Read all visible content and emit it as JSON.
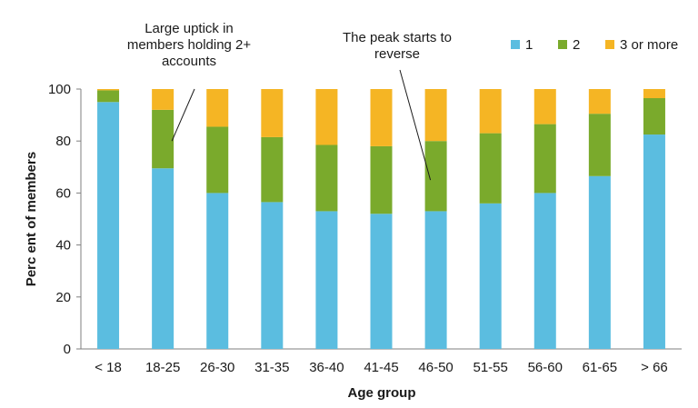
{
  "chart_data": {
    "type": "bar",
    "stacked": true,
    "xlabel": "Age group",
    "ylabel": "Perc ent of members",
    "ylim": [
      0,
      100
    ],
    "yticks": [
      0,
      20,
      40,
      60,
      80,
      100
    ],
    "categories": [
      "< 18",
      "18-25",
      "26-30",
      "31-35",
      "36-40",
      "41-45",
      "46-50",
      "51-55",
      "56-60",
      "61-65",
      "> 66"
    ],
    "series": [
      {
        "name": "1",
        "color": "#5bbde0",
        "values": [
          95,
          69.5,
          60,
          56.5,
          53,
          52,
          53,
          56,
          60,
          66.5,
          82.5
        ]
      },
      {
        "name": "2",
        "color": "#7aaa2c",
        "values": [
          4.5,
          22.5,
          25.5,
          25,
          25.5,
          26,
          27,
          27,
          26.5,
          24,
          14
        ]
      },
      {
        "name": "3 or more",
        "color": "#f5b524",
        "values": [
          0.5,
          8,
          14.5,
          18.5,
          21.5,
          22,
          20,
          17,
          13.5,
          9.5,
          3.5
        ]
      }
    ],
    "legend": {
      "position": "top-right"
    },
    "grid": false,
    "annotations": [
      {
        "lines": [
          "Large uptick in",
          "members holding 2+",
          "accounts"
        ],
        "target_category": "18-25",
        "target_value": 80
      },
      {
        "lines": [
          "The peak starts to",
          "reverse"
        ],
        "target_category": "46-50",
        "target_value": 65
      }
    ]
  }
}
